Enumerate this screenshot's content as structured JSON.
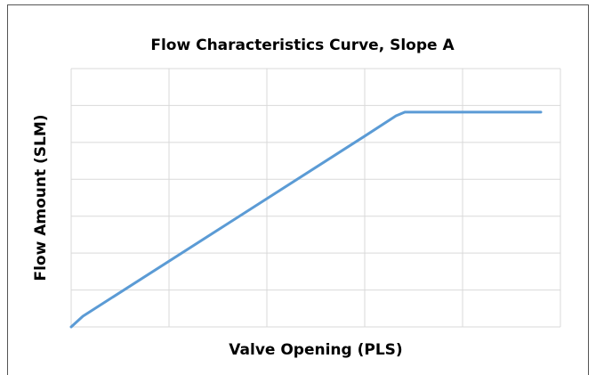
{
  "chart_data": {
    "type": "line",
    "title": "Flow Characteristics Curve, Slope A",
    "x_label": "Valve Opening (PLS)",
    "y_label": "Flow Amount (SLM)",
    "x": [
      0,
      0.12,
      3,
      3.32,
      3.41,
      4.8
    ],
    "series": [
      {
        "color": "#5b9bd5",
        "values": [
          0,
          0.29,
          5.17,
          5.72,
          5.82,
          5.82
        ]
      }
    ],
    "xlim": [
      0,
      5
    ],
    "ylim": [
      0,
      7
    ],
    "xticks": [
      0,
      1,
      2,
      3,
      4,
      5
    ],
    "yticks": [
      0,
      1,
      2,
      3,
      4,
      5,
      6,
      7
    ],
    "grid": true
  }
}
